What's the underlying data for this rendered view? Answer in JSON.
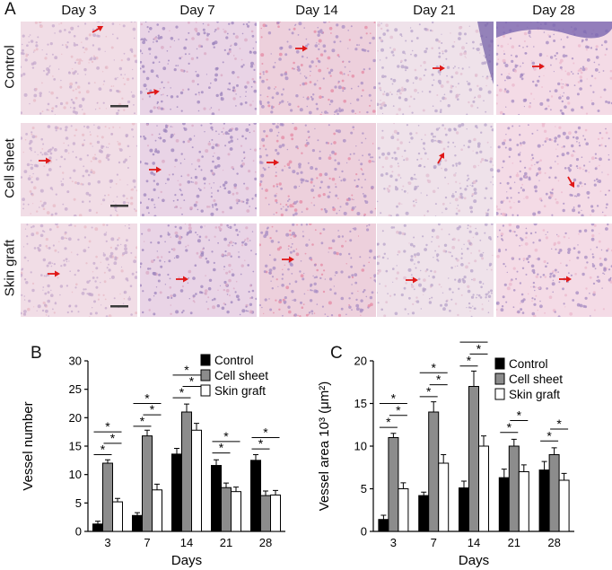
{
  "panel_a": {
    "letter": "A",
    "days": [
      "Day 3",
      "Day 7",
      "Day 14",
      "Day 21",
      "Day 28"
    ],
    "rows": [
      "Control",
      "Cell sheet",
      "Skin graft"
    ]
  },
  "panel_b_letter": "B",
  "panel_c_letter": "C",
  "colors": {
    "control": "#000000",
    "cell_sheet": "#8c8c8c",
    "skin_graft": "#ffffff",
    "arrow": "#e01818"
  },
  "chart_data": [
    {
      "type": "bar",
      "xlabel": "Days",
      "ylabel": "Vessel number",
      "categories": [
        "3",
        "7",
        "14",
        "21",
        "28"
      ],
      "ylim": [
        0,
        30
      ],
      "yticks": [
        0,
        5,
        10,
        15,
        20,
        25,
        30
      ],
      "series": [
        {
          "name": "Control",
          "values": [
            1.3,
            2.8,
            13.6,
            11.6,
            12.5
          ],
          "errors": [
            0.5,
            0.5,
            1.0,
            1.0,
            1.0
          ]
        },
        {
          "name": "Cell sheet",
          "values": [
            12.0,
            16.8,
            21.0,
            7.7,
            6.3
          ],
          "errors": [
            0.6,
            1.0,
            1.4,
            0.8,
            0.8
          ]
        },
        {
          "name": "Skin graft",
          "values": [
            5.2,
            7.3,
            17.8,
            7.0,
            6.4
          ],
          "errors": [
            0.6,
            1.0,
            1.2,
            0.8,
            0.8
          ]
        }
      ],
      "significance": "*",
      "legend": "top-right"
    },
    {
      "type": "bar",
      "xlabel": "Days",
      "ylabel": "Vessel area 10³ (μm²)",
      "categories": [
        "3",
        "7",
        "14",
        "21",
        "28"
      ],
      "ylim": [
        0,
        20
      ],
      "yticks": [
        0,
        5,
        10,
        15,
        20
      ],
      "series": [
        {
          "name": "Control",
          "values": [
            1.4,
            4.2,
            5.1,
            6.3,
            7.2
          ],
          "errors": [
            0.5,
            0.4,
            0.8,
            1.0,
            1.0
          ]
        },
        {
          "name": "Cell sheet",
          "values": [
            11.0,
            14.0,
            17.0,
            10.0,
            9.0
          ],
          "errors": [
            0.5,
            1.2,
            1.8,
            0.8,
            0.8
          ]
        },
        {
          "name": "Skin graft",
          "values": [
            5.0,
            8.0,
            10.0,
            7.0,
            6.0
          ],
          "errors": [
            0.7,
            1.0,
            1.2,
            0.8,
            0.8
          ]
        }
      ],
      "significance": "*",
      "legend": "top-right"
    }
  ]
}
